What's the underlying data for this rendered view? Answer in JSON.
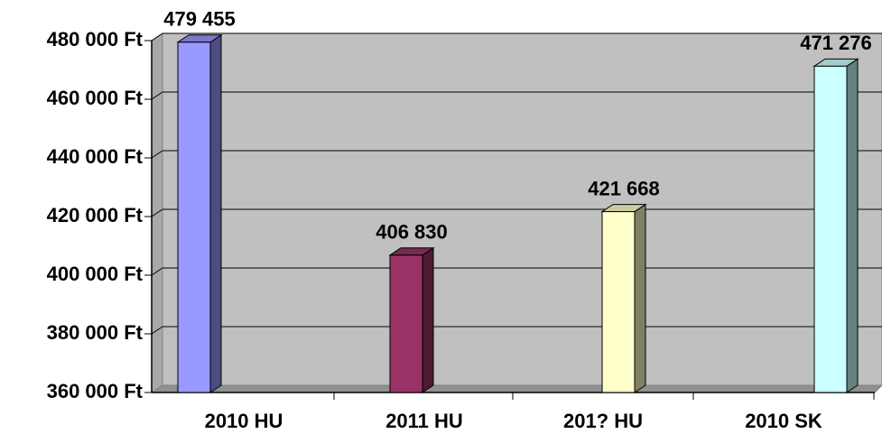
{
  "chart_data": {
    "type": "bar",
    "categories": [
      "2010 HU",
      "2011 HU",
      "201? HU",
      "2010 SK"
    ],
    "series": [
      {
        "values": [
          479455,
          406830,
          421668,
          471276
        ],
        "value_labels": [
          "479 455",
          "406 830",
          "421 668",
          "471 276"
        ],
        "colors": [
          "#9999ff",
          "#993366",
          "#ffffcc",
          "#ccffff"
        ]
      }
    ],
    "ylim": [
      360000,
      480000
    ],
    "yticks": [
      {
        "value": 360000,
        "label": "360 000 Ft"
      },
      {
        "value": 380000,
        "label": "380 000 Ft"
      },
      {
        "value": 400000,
        "label": "400 000 Ft"
      },
      {
        "value": 420000,
        "label": "420 000 Ft"
      },
      {
        "value": 440000,
        "label": "440 000 Ft"
      },
      {
        "value": 460000,
        "label": "460 000 Ft"
      },
      {
        "value": 480000,
        "label": "480 000 Ft"
      }
    ],
    "grid": true
  }
}
